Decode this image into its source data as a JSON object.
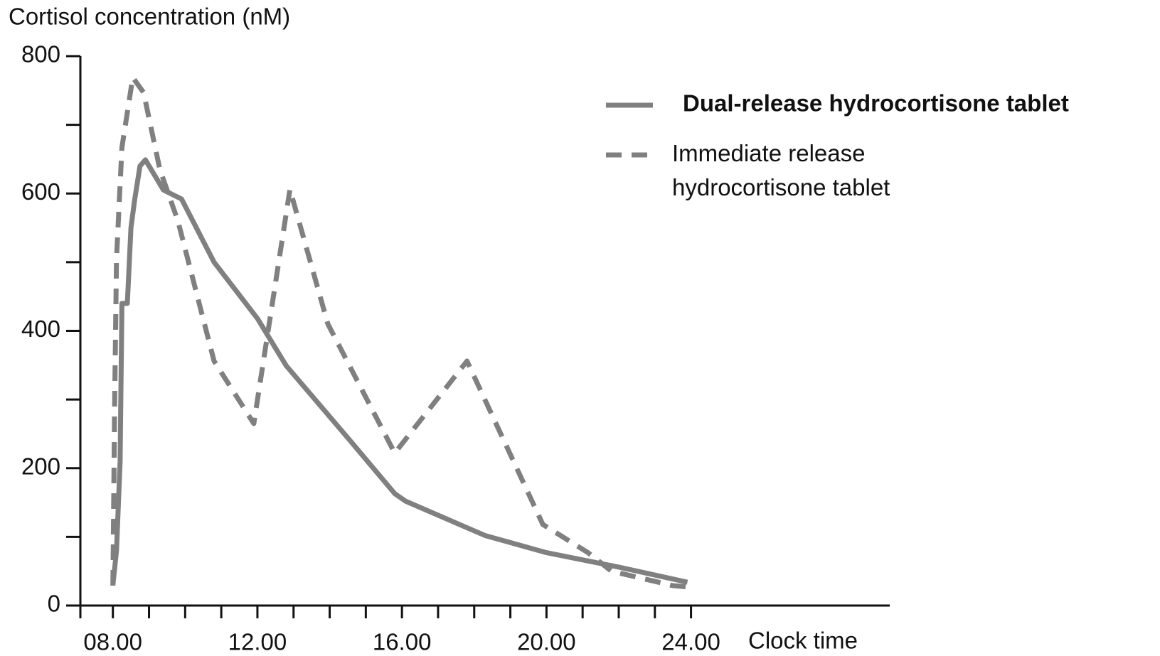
{
  "chart_data": {
    "type": "line",
    "ylabel": "Cortisol concentration (nM)",
    "xlabel": "Clock time",
    "xlim": [
      7.1,
      29.5
    ],
    "xticks": [
      {
        "value": 8,
        "label": "08.00"
      },
      {
        "value": 12,
        "label": "12.00"
      },
      {
        "value": 16,
        "label": "16.00"
      },
      {
        "value": 20,
        "label": "20.00"
      },
      {
        "value": 24,
        "label": "24.00"
      }
    ],
    "xminor_ticks": [
      7.1,
      9,
      10,
      11,
      13,
      14,
      15,
      17,
      18,
      19,
      21,
      22,
      23
    ],
    "ylim": [
      0,
      800
    ],
    "yticks": [
      0,
      200,
      400,
      600,
      800
    ],
    "yminor_ticks": [
      100,
      300,
      500,
      700
    ],
    "legend": "top-right",
    "series": [
      {
        "name": "Dual-release hydrocortisone tablet",
        "color": "#808080",
        "dash": false,
        "x": [
          8.0,
          8.1,
          8.2,
          8.25,
          8.4,
          8.5,
          8.6,
          8.75,
          8.9,
          9.4,
          9.9,
          10.8,
          12.0,
          12.8,
          14.6,
          15.8,
          16.1,
          18.3,
          20.0,
          22.0,
          23.9
        ],
        "values": [
          30,
          80,
          210,
          440,
          440,
          550,
          590,
          640,
          649,
          605,
          592,
          500,
          418,
          349,
          238,
          163,
          152,
          102,
          77,
          56,
          34
        ]
      },
      {
        "name": "Immediate release hydrocortisone tablet",
        "color": "#808080",
        "dash": true,
        "x": [
          8.0,
          8.05,
          8.1,
          8.25,
          8.55,
          8.85,
          9.3,
          9.8,
          10.8,
          11.9,
          12.9,
          13.95,
          15.8,
          17.8,
          19.9,
          21.15,
          21.8,
          23.5,
          23.95
        ],
        "values": [
          29,
          300,
          505,
          667,
          769,
          747,
          635,
          560,
          356,
          265,
          606,
          410,
          222,
          356,
          118,
          77,
          50,
          29,
          27
        ]
      }
    ]
  }
}
